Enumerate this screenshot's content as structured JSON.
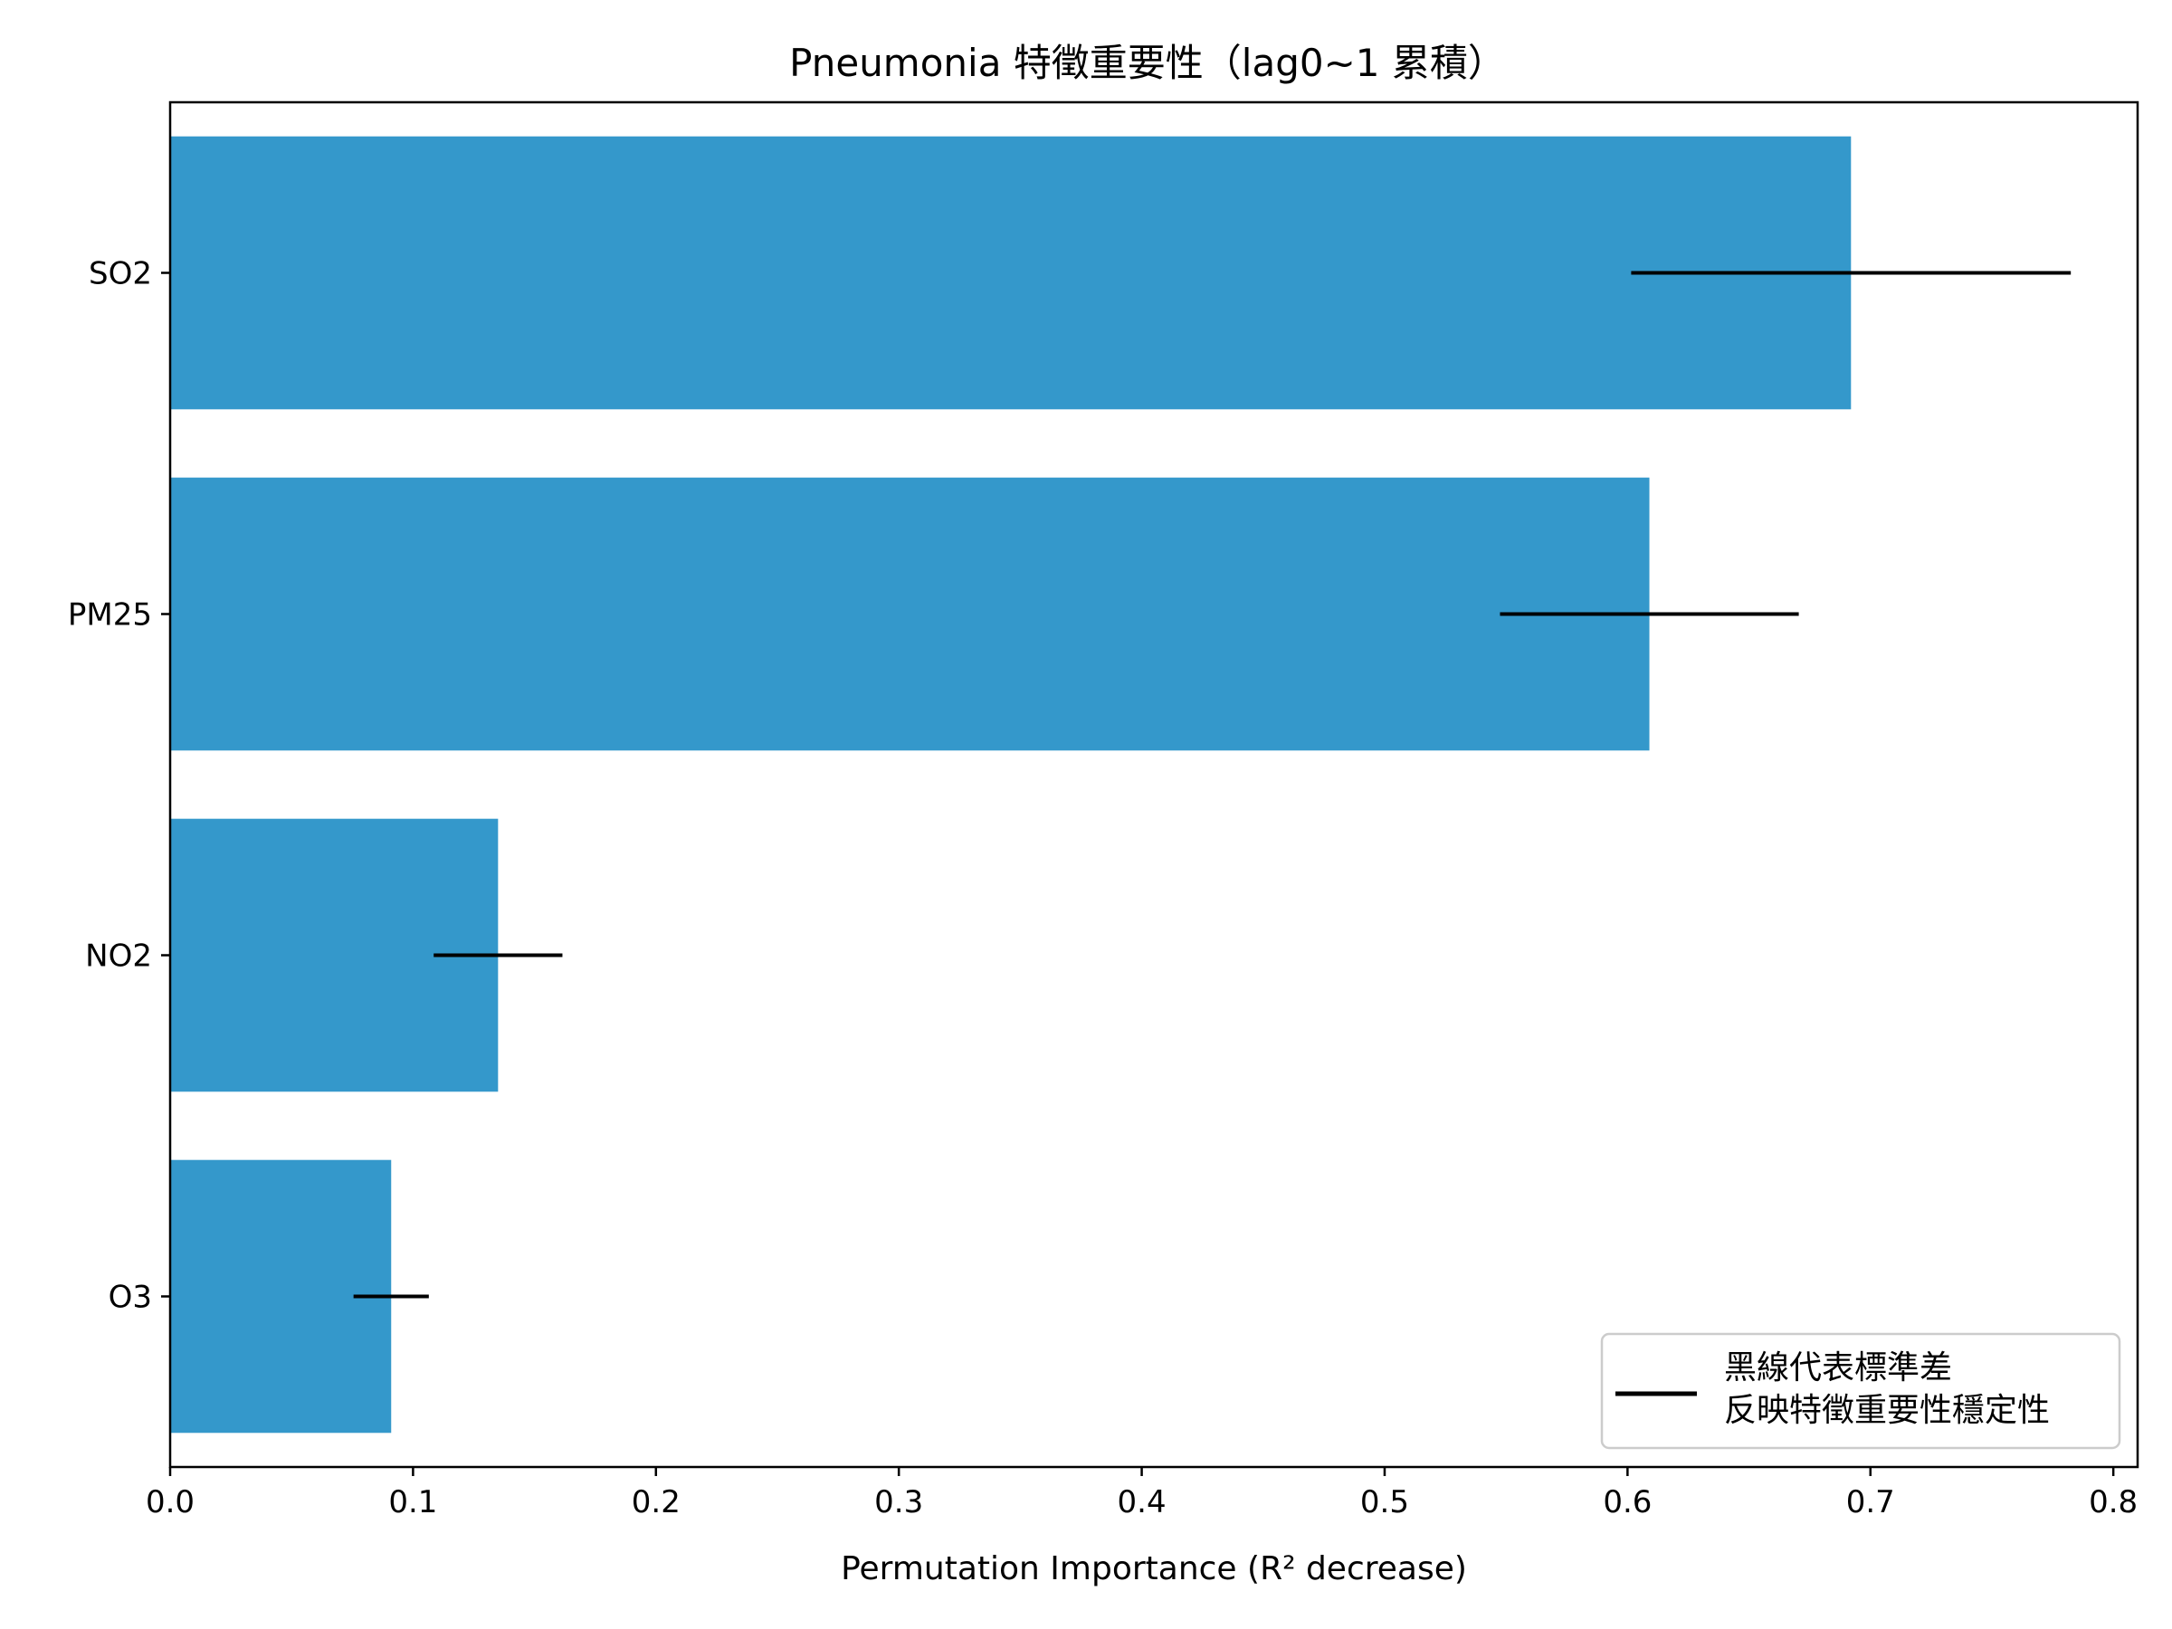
{
  "chart_data": {
    "type": "bar",
    "orientation": "horizontal",
    "title": "Pneumonia 特徵重要性（lag0~1 累積）",
    "xlabel": "Permutation Importance (R² decrease)",
    "ylabel": "",
    "categories": [
      "SO2",
      "PM25",
      "NO2",
      "O3"
    ],
    "values": [
      0.692,
      0.609,
      0.135,
      0.091
    ],
    "std": [
      0.0905,
      0.0615,
      0.0265,
      0.0155
    ],
    "xlim": [
      0.0,
      0.81
    ],
    "xticks": [
      "0.0",
      "0.1",
      "0.2",
      "0.3",
      "0.4",
      "0.5",
      "0.6",
      "0.7",
      "0.8"
    ],
    "grid": false,
    "bar_color": "#3498cb",
    "errorbar_color": "#000000",
    "legend": {
      "placement": "lower-right",
      "entry_line1": "黑線代表標準差",
      "entry_line2": "反映特徵重要性穩定性"
    }
  }
}
